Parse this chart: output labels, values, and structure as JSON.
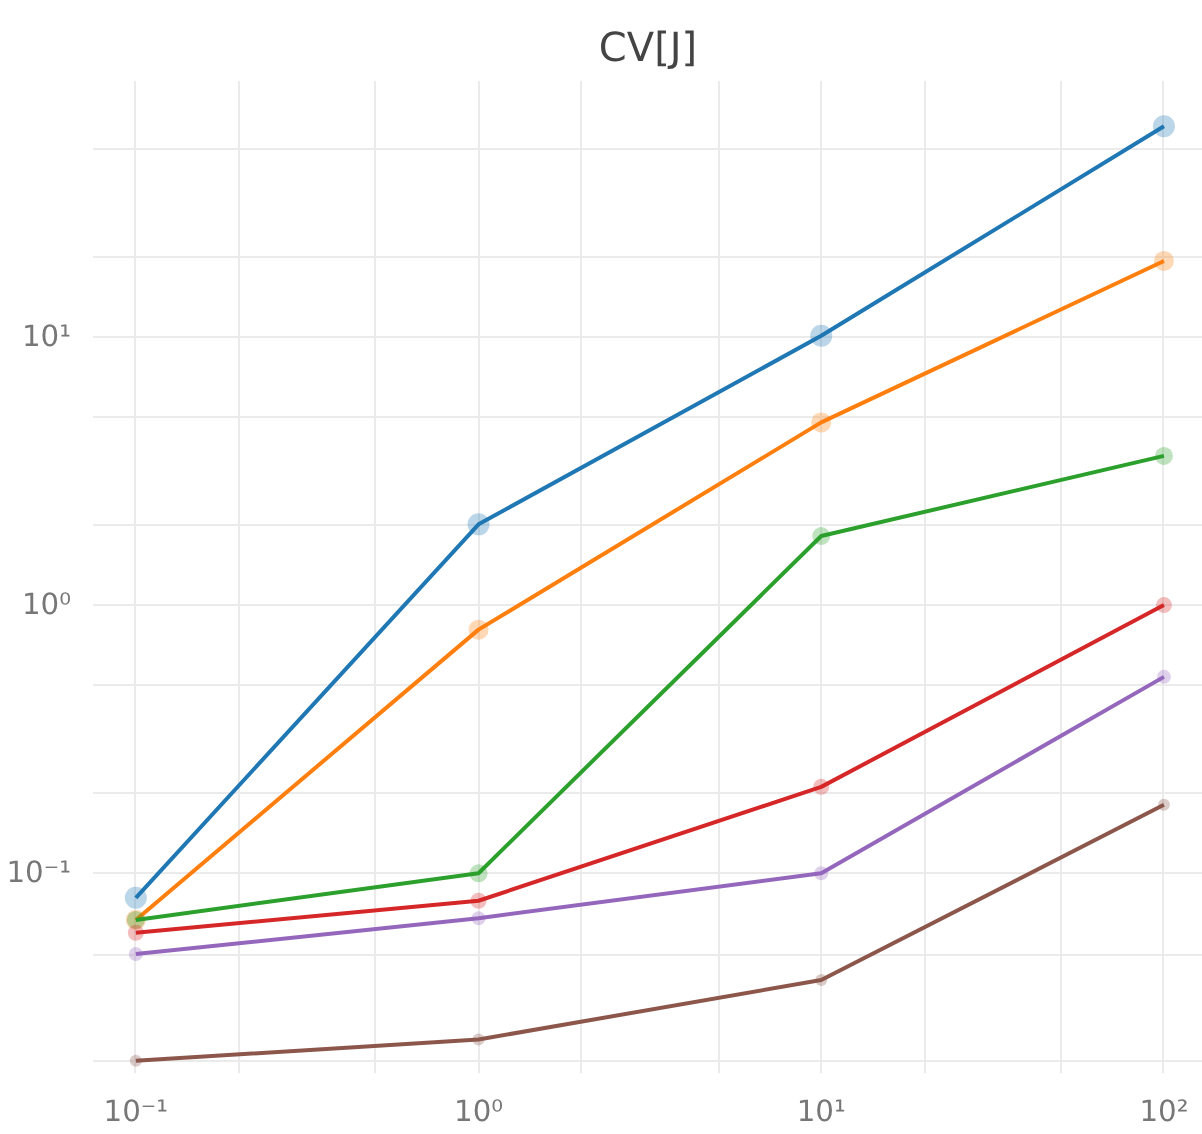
{
  "chart_data": {
    "type": "line",
    "title": "CV[J]",
    "log": "xy",
    "grid": true,
    "marker": "circle",
    "line_style": "solid",
    "x": [
      0.1,
      1,
      10,
      100
    ],
    "xlim": [
      0.075,
      130
    ],
    "ylim": [
      0.018,
      90
    ],
    "xticks": [
      {
        "value": 0.1,
        "label": "10⁻¹"
      },
      {
        "value": 0.2,
        "label": null
      },
      {
        "value": 0.5,
        "label": null
      },
      {
        "value": 1,
        "label": "10⁰"
      },
      {
        "value": 2,
        "label": null
      },
      {
        "value": 5,
        "label": null
      },
      {
        "value": 10,
        "label": "10¹"
      },
      {
        "value": 20,
        "label": null
      },
      {
        "value": 50,
        "label": null
      },
      {
        "value": 100,
        "label": "10²"
      }
    ],
    "yticks": [
      {
        "value": 0.02,
        "label": null
      },
      {
        "value": 0.05,
        "label": null
      },
      {
        "value": 0.1,
        "label": "10⁻¹"
      },
      {
        "value": 0.2,
        "label": null
      },
      {
        "value": 0.5,
        "label": null
      },
      {
        "value": 1,
        "label": "10⁰"
      },
      {
        "value": 2,
        "label": null
      },
      {
        "value": 5,
        "label": null
      },
      {
        "value": 10,
        "label": "10¹"
      },
      {
        "value": 20,
        "label": null
      },
      {
        "value": 50,
        "label": null
      }
    ],
    "series": [
      {
        "color": "#1f77b4",
        "values": [
          0.081,
          2.0,
          10.1,
          61
        ]
      },
      {
        "color": "#ff7f0e",
        "values": [
          0.067,
          0.81,
          4.8,
          19.2
        ]
      },
      {
        "color": "#2ca02c",
        "values": [
          0.067,
          0.1,
          1.81,
          3.6
        ]
      },
      {
        "color": "#d62728",
        "values": [
          0.06,
          0.079,
          0.21,
          1.0
        ]
      },
      {
        "color": "#9467bd",
        "values": [
          0.05,
          0.068,
          0.1,
          0.54
        ]
      },
      {
        "color": "#8c564b",
        "values": [
          0.02,
          0.024,
          0.04,
          0.18
        ]
      }
    ]
  }
}
